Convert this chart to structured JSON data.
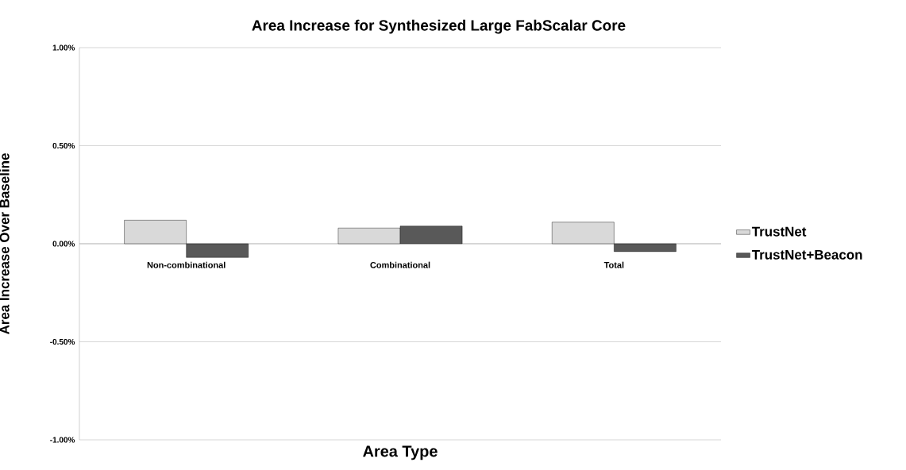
{
  "chart_data": {
    "type": "bar",
    "title": "Area Increase for Synthesized Large FabScalar Core",
    "xlabel": "Area Type",
    "ylabel": "Area Increase Over Baseline",
    "categories": [
      "Non-combinational",
      "Combinational",
      "Total"
    ],
    "series": [
      {
        "name": "TrustNet",
        "color": "#d9d9d9",
        "values": [
          0.12,
          0.08,
          0.11
        ]
      },
      {
        "name": "TrustNet+Beacon",
        "color": "#595959",
        "values": [
          -0.07,
          0.09,
          -0.04
        ]
      }
    ],
    "ylim": [
      -1,
      1
    ],
    "yticks": [
      {
        "value": -1,
        "label": "-1.00%"
      },
      {
        "value": -0.5,
        "label": "-0.50%"
      },
      {
        "value": 0,
        "label": "0.00%"
      },
      {
        "value": 0.5,
        "label": "0.50%"
      },
      {
        "value": 1,
        "label": "1.00%"
      }
    ],
    "grid": "y",
    "legend": "right"
  }
}
